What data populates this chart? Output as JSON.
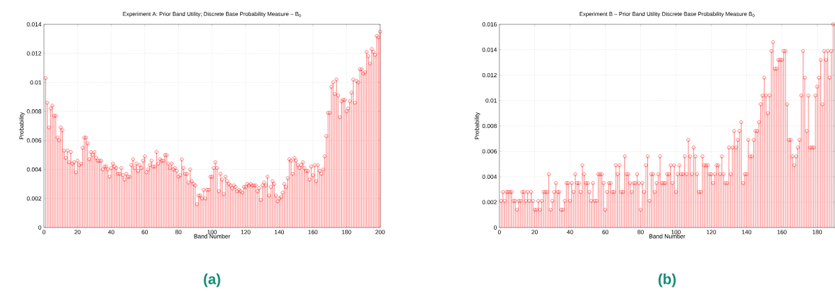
{
  "chart_data": [
    {
      "type": "lollipop",
      "title": "Experiment  A: Prior Band Utility; Discrete Base Probability Measure – B$_{0}$",
      "xlabel": "Band Number",
      "ylabel": "Probability",
      "annotations": [
        "(a)"
      ],
      "grid": true,
      "marker": "circle",
      "xlim": [
        0,
        200
      ],
      "xticks": [
        0,
        20,
        40,
        60,
        80,
        100,
        120,
        140,
        160,
        180,
        200
      ],
      "ylim": [
        0,
        0.014
      ],
      "yticks": [
        0,
        0.002,
        0.004,
        0.006,
        0.008,
        0.01,
        0.012,
        0.014
      ],
      "x": [
        1,
        2,
        3,
        4,
        5,
        6,
        7,
        8,
        9,
        10,
        11,
        12,
        13,
        14,
        15,
        16,
        17,
        18,
        19,
        20,
        21,
        22,
        23,
        24,
        25,
        26,
        27,
        28,
        29,
        30,
        31,
        32,
        33,
        34,
        35,
        36,
        37,
        38,
        39,
        40,
        41,
        42,
        43,
        44,
        45,
        46,
        47,
        48,
        49,
        50,
        51,
        52,
        53,
        54,
        55,
        56,
        57,
        58,
        59,
        60,
        61,
        62,
        63,
        64,
        65,
        66,
        67,
        68,
        69,
        70,
        71,
        72,
        73,
        74,
        75,
        76,
        77,
        78,
        79,
        80,
        81,
        82,
        83,
        84,
        85,
        86,
        87,
        88,
        89,
        90,
        91,
        92,
        93,
        94,
        95,
        96,
        97,
        98,
        99,
        100,
        101,
        102,
        103,
        104,
        105,
        106,
        107,
        108,
        109,
        110,
        111,
        112,
        113,
        114,
        115,
        116,
        117,
        118,
        119,
        120,
        121,
        122,
        123,
        124,
        125,
        126,
        127,
        128,
        129,
        130,
        131,
        132,
        133,
        134,
        135,
        136,
        137,
        138,
        139,
        140,
        141,
        142,
        143,
        144,
        145,
        146,
        147,
        148,
        149,
        150,
        151,
        152,
        153,
        154,
        155,
        156,
        157,
        158,
        159,
        160,
        161,
        162,
        163,
        164,
        165,
        166,
        167,
        168,
        169,
        170,
        171,
        172,
        173,
        174,
        175,
        176,
        177,
        178,
        179,
        180,
        181,
        182,
        183,
        184,
        185,
        186,
        187,
        188,
        189,
        190,
        191,
        192,
        193,
        194,
        195,
        196,
        197,
        198,
        199,
        200
      ],
      "series": [
        {
          "color": "#ff0000",
          "values": [
            0.0103,
            0.0086,
            0.0069,
            0.0082,
            0.0084,
            0.0077,
            0.0077,
            0.0062,
            0.006,
            0.0069,
            0.0067,
            0.0053,
            0.0048,
            0.0053,
            0.0045,
            0.0052,
            0.0044,
            0.0045,
            0.0038,
            0.0046,
            0.0043,
            0.0044,
            0.0055,
            0.0062,
            0.0062,
            0.0058,
            0.0047,
            0.0052,
            0.005,
            0.0052,
            0.0048,
            0.0046,
            0.0046,
            0.0046,
            0.004,
            0.0042,
            0.0042,
            0.004,
            0.0035,
            0.0041,
            0.0044,
            0.0042,
            0.0041,
            0.0037,
            0.0037,
            0.0041,
            0.0036,
            0.0033,
            0.0037,
            0.0035,
            0.0035,
            0.0043,
            0.0047,
            0.0041,
            0.0044,
            0.0039,
            0.0043,
            0.0041,
            0.0046,
            0.0049,
            0.0038,
            0.004,
            0.0043,
            0.0046,
            0.0042,
            0.0042,
            0.0052,
            0.0044,
            0.0047,
            0.0046,
            0.0046,
            0.005,
            0.005,
            0.0044,
            0.0041,
            0.0044,
            0.004,
            0.0041,
            0.0039,
            0.0035,
            0.0036,
            0.0047,
            0.0041,
            0.0037,
            0.0037,
            0.0031,
            0.004,
            0.0032,
            0.003,
            0.0029,
            0.0016,
            0.0022,
            0.0022,
            0.002,
            0.0026,
            0.002,
            0.0026,
            0.0026,
            0.0035,
            0.0035,
            0.0041,
            0.0045,
            0.0041,
            0.0025,
            0.0037,
            0.0033,
            0.0023,
            0.0035,
            0.0032,
            0.003,
            0.0029,
            0.0027,
            0.0029,
            0.0028,
            0.0025,
            0.0026,
            0.0025,
            0.0024,
            0.0028,
            0.0028,
            0.003,
            0.0029,
            0.003,
            0.0029,
            0.0029,
            0.0029,
            0.0025,
            0.0027,
            0.0019,
            0.0029,
            0.0031,
            0.0029,
            0.0035,
            0.0022,
            0.0028,
            0.0032,
            0.003,
            0.0022,
            0.0018,
            0.002,
            0.0021,
            0.0024,
            0.003,
            0.0028,
            0.0034,
            0.0047,
            0.0046,
            0.0037,
            0.0048,
            0.0046,
            0.0043,
            0.0041,
            0.0043,
            0.0045,
            0.0041,
            0.0039,
            0.0039,
            0.0033,
            0.0042,
            0.0036,
            0.0043,
            0.0032,
            0.0043,
            0.0039,
            0.0037,
            0.004,
            0.0049,
            0.0063,
            0.0079,
            0.0079,
            0.0097,
            0.01,
            0.0092,
            0.0102,
            0.0091,
            0.0076,
            0.0087,
            0.0088,
            0.0088,
            0.008,
            0.0082,
            0.0087,
            0.0093,
            0.0102,
            0.0086,
            0.0101,
            0.01,
            0.0109,
            0.0109,
            0.0106,
            0.0107,
            0.0121,
            0.0118,
            0.0113,
            0.0123,
            0.0121,
            0.0119,
            0.0132,
            0.0131,
            0.0135
          ]
        }
      ]
    },
    {
      "type": "lollipop",
      "title": "Experiment B – Prior Band Utility Discrete Base Probability Measure B$_{0}$",
      "xlabel": "Band Number",
      "ylabel": "Probability",
      "annotations": [
        "(b)"
      ],
      "grid": true,
      "marker": "circle",
      "xlim": [
        0,
        190
      ],
      "xticks": [
        0,
        20,
        40,
        60,
        80,
        100,
        120,
        140,
        160,
        180
      ],
      "ylim": [
        0,
        0.016
      ],
      "yticks": [
        0,
        0.002,
        0.004,
        0.006,
        0.008,
        0.01,
        0.012,
        0.014,
        0.016
      ],
      "x": [
        1,
        2,
        3,
        4,
        5,
        6,
        7,
        8,
        9,
        10,
        11,
        12,
        13,
        14,
        15,
        16,
        17,
        18,
        19,
        20,
        21,
        22,
        23,
        24,
        25,
        26,
        27,
        28,
        29,
        30,
        31,
        32,
        33,
        34,
        35,
        36,
        37,
        38,
        39,
        40,
        41,
        42,
        43,
        44,
        45,
        46,
        47,
        48,
        49,
        50,
        51,
        52,
        53,
        54,
        55,
        56,
        57,
        58,
        59,
        60,
        61,
        62,
        63,
        64,
        65,
        66,
        67,
        68,
        69,
        70,
        71,
        72,
        73,
        74,
        75,
        76,
        77,
        78,
        79,
        80,
        81,
        82,
        83,
        84,
        85,
        86,
        87,
        88,
        89,
        90,
        91,
        92,
        93,
        94,
        95,
        96,
        97,
        98,
        99,
        100,
        101,
        102,
        103,
        104,
        105,
        106,
        107,
        108,
        109,
        110,
        111,
        112,
        113,
        114,
        115,
        116,
        117,
        118,
        119,
        120,
        121,
        122,
        123,
        124,
        125,
        126,
        127,
        128,
        129,
        130,
        131,
        132,
        133,
        134,
        135,
        136,
        137,
        138,
        139,
        140,
        141,
        142,
        143,
        144,
        145,
        146,
        147,
        148,
        149,
        150,
        151,
        152,
        153,
        154,
        155,
        156,
        157,
        158,
        159,
        160,
        161,
        162,
        163,
        164,
        165,
        166,
        167,
        168,
        169,
        170,
        171,
        172,
        173,
        174,
        175,
        176,
        177,
        178,
        179,
        180,
        181,
        182,
        183,
        184,
        185,
        186,
        187,
        188,
        189
      ],
      "series": [
        {
          "color": "#ff0000",
          "values": [
            0.0021,
            0.0028,
            0.0021,
            0.0028,
            0.0028,
            0.0028,
            0.0028,
            0.0021,
            0.0021,
            0.0014,
            0.0021,
            0.0021,
            0.0028,
            0.0028,
            0.0021,
            0.0028,
            0.0021,
            0.0028,
            0.0021,
            0.0014,
            0.0014,
            0.0021,
            0.0014,
            0.0021,
            0.0028,
            0.0028,
            0.0028,
            0.0042,
            0.0014,
            0.0021,
            0.0028,
            0.0035,
            0.0028,
            0.0028,
            0.0014,
            0.0014,
            0.0021,
            0.0035,
            0.0035,
            0.0021,
            0.0035,
            0.0028,
            0.0042,
            0.0035,
            0.0035,
            0.0028,
            0.0049,
            0.0042,
            0.0035,
            0.0035,
            0.0028,
            0.0021,
            0.0035,
            0.0021,
            0.0021,
            0.0042,
            0.0042,
            0.0042,
            0.0035,
            0.0014,
            0.0028,
            0.0035,
            0.0035,
            0.0028,
            0.0028,
            0.0049,
            0.0042,
            0.0049,
            0.0028,
            0.0028,
            0.0056,
            0.0042,
            0.0042,
            0.0035,
            0.0028,
            0.0035,
            0.0035,
            0.0042,
            0.0035,
            0.0014,
            0.0035,
            0.0028,
            0.0049,
            0.0056,
            0.0021,
            0.0042,
            0.0042,
            0.0028,
            0.0035,
            0.0042,
            0.0056,
            0.0035,
            0.0035,
            0.0035,
            0.0042,
            0.0042,
            0.0049,
            0.0035,
            0.0049,
            0.0028,
            0.0042,
            0.0049,
            0.0042,
            0.0042,
            0.0056,
            0.0042,
            0.0069,
            0.0056,
            0.0042,
            0.0063,
            0.0056,
            0.0042,
            0.0028,
            0.0028,
            0.0056,
            0.0049,
            0.0049,
            0.0049,
            0.0042,
            0.0042,
            0.0035,
            0.0042,
            0.0049,
            0.0049,
            0.0042,
            0.0056,
            0.0042,
            0.0035,
            0.0035,
            0.0063,
            0.0042,
            0.0063,
            0.0076,
            0.0063,
            0.0069,
            0.0076,
            0.0083,
            0.0035,
            0.0042,
            0.0042,
            0.0069,
            0.0056,
            0.0056,
            0.0069,
            0.0076,
            0.0076,
            0.0083,
            0.0097,
            0.0104,
            0.0118,
            0.0104,
            0.009,
            0.0104,
            0.0139,
            0.0146,
            0.0125,
            0.0125,
            0.0132,
            0.0132,
            0.0132,
            0.0139,
            0.0139,
            0.0097,
            0.0069,
            0.0069,
            0.0056,
            0.0049,
            0.0056,
            0.0063,
            0.0069,
            0.0104,
            0.0139,
            0.0118,
            0.0076,
            0.0104,
            0.0063,
            0.0063,
            0.0063,
            0.0104,
            0.0111,
            0.0118,
            0.0132,
            0.0097,
            0.0139,
            0.0132,
            0.0139,
            0.0118,
            0.0139,
            0.016
          ]
        }
      ]
    }
  ]
}
